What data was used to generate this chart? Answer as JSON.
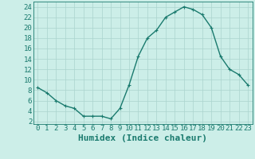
{
  "x": [
    0,
    1,
    2,
    3,
    4,
    5,
    6,
    7,
    8,
    9,
    10,
    11,
    12,
    13,
    14,
    15,
    16,
    17,
    18,
    19,
    20,
    21,
    22,
    23
  ],
  "y": [
    8.5,
    7.5,
    6,
    5,
    4.5,
    3,
    3,
    3,
    2.5,
    4.5,
    9,
    14.5,
    18,
    19.5,
    22,
    23,
    24,
    23.5,
    22.5,
    20,
    14.5,
    12,
    11,
    9
  ],
  "line_color": "#1a7a6e",
  "marker": "+",
  "marker_color": "#1a7a6e",
  "bg_color": "#cceee8",
  "grid_color": "#aad4ce",
  "xlabel": "Humidex (Indice chaleur)",
  "xlim": [
    -0.5,
    23.5
  ],
  "ylim": [
    1.5,
    25
  ],
  "yticks": [
    2,
    4,
    6,
    8,
    10,
    12,
    14,
    16,
    18,
    20,
    22,
    24
  ],
  "xticks": [
    0,
    1,
    2,
    3,
    4,
    5,
    6,
    7,
    8,
    9,
    10,
    11,
    12,
    13,
    14,
    15,
    16,
    17,
    18,
    19,
    20,
    21,
    22,
    23
  ],
  "tick_label_fontsize": 6.5,
  "xlabel_fontsize": 8,
  "linewidth": 1.0,
  "markersize": 3.5,
  "marker_linewidth": 0.8
}
